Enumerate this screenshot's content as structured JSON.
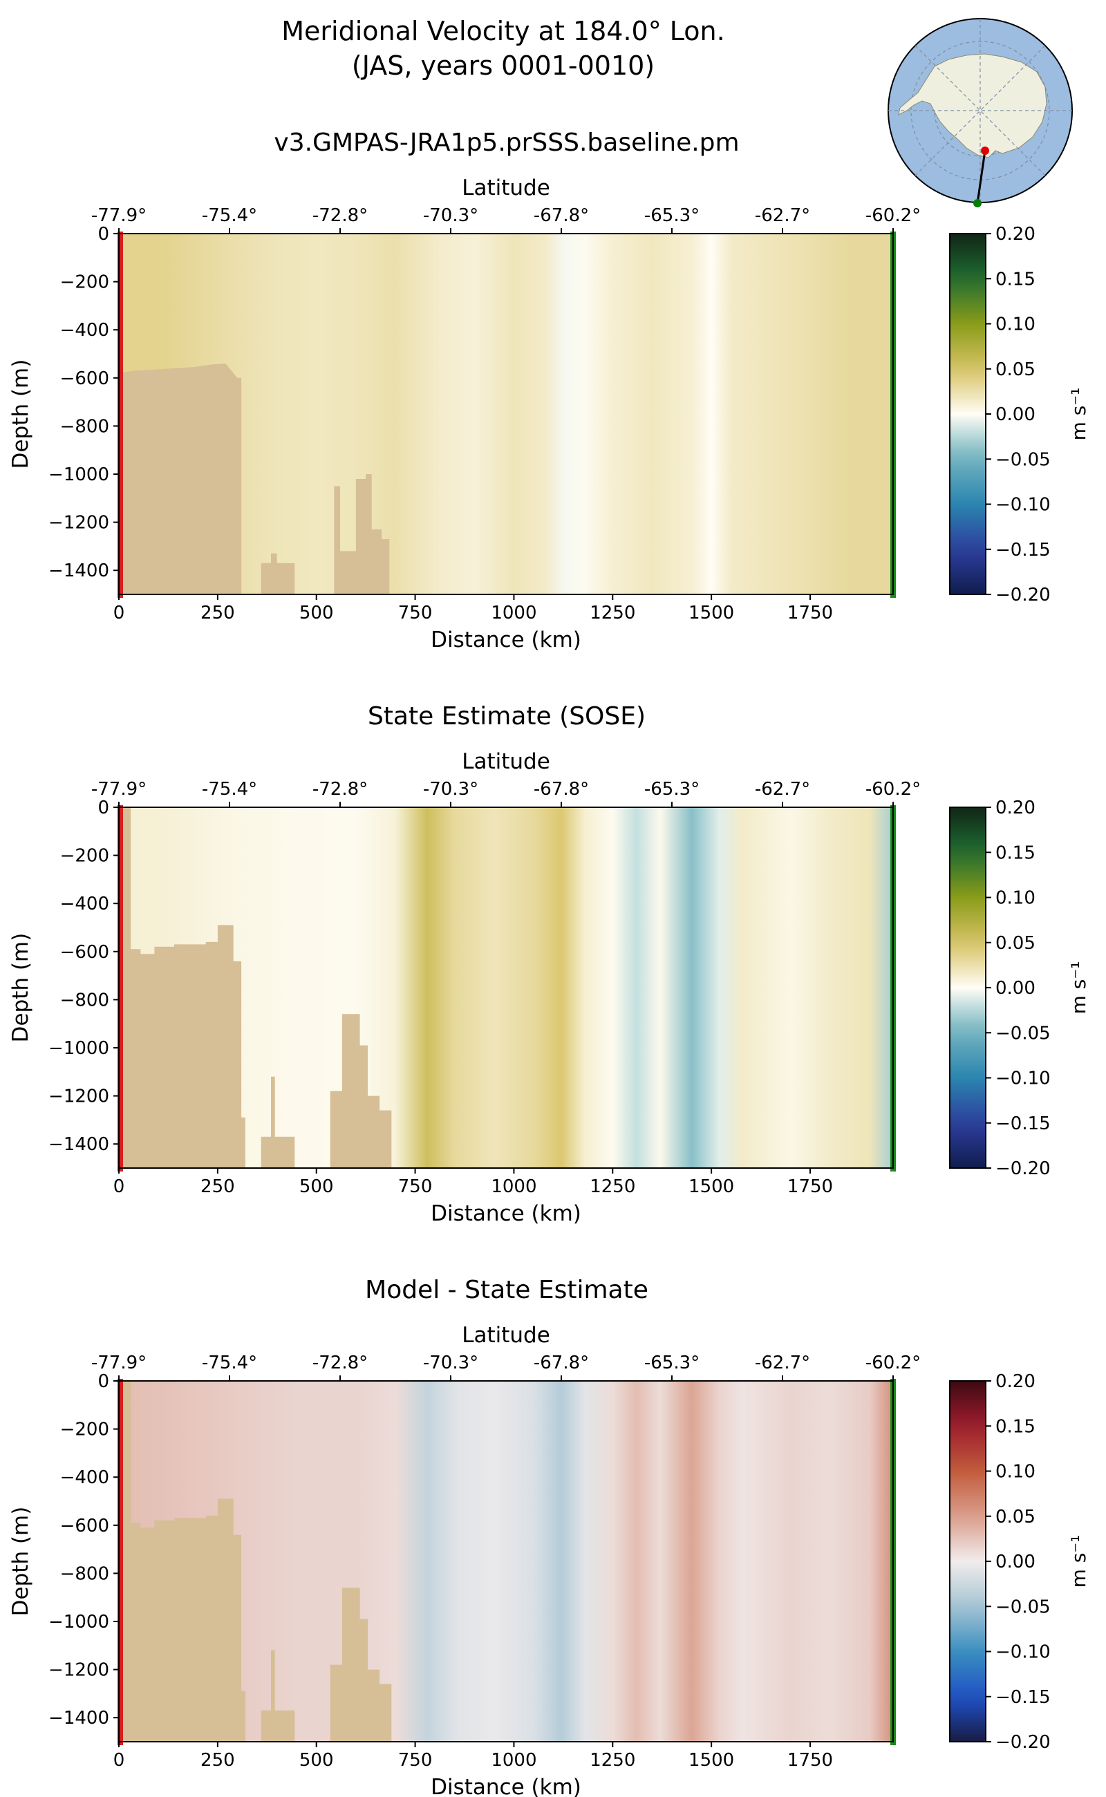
{
  "figure": {
    "title_line1": "Meridional Velocity at 184.0° Lon.",
    "title_line2": "(JAS, years 0001-0010)"
  },
  "inset_map": {
    "description_icon": "antarctica-polar-map-icon",
    "colors": {
      "ocean": "#9cbce0",
      "land": "#efefe0",
      "grid": "#7f8fa0",
      "start": "#e00000",
      "end": "#008000"
    }
  },
  "chart_data": [
    {
      "type": "heatmap",
      "title": "v3.GMPAS-JRA1p5.prSSS.baseline.pm",
      "xlabel": "Distance (km)",
      "ylabel": "Depth (m)",
      "top_axis_label": "Latitude",
      "xlim": [
        0,
        1960
      ],
      "ylim": [
        -1500,
        0
      ],
      "x_ticks": [
        0,
        250,
        500,
        750,
        1000,
        1250,
        1500,
        1750
      ],
      "y_ticks": [
        0,
        -200,
        -400,
        -600,
        -800,
        -1000,
        -1200,
        -1400
      ],
      "lat_ticks": [
        "-77.9°",
        "-75.4°",
        "-72.8°",
        "-70.3°",
        "-67.8°",
        "-65.3°",
        "-62.7°",
        "-60.2°"
      ],
      "colorbar": {
        "label": "m s⁻¹",
        "min": -0.2,
        "max": 0.2,
        "ticks": [
          "0.20",
          "0.15",
          "0.10",
          "0.05",
          "0.00",
          "−0.05",
          "−0.10",
          "−0.15",
          "−0.20"
        ],
        "cmap": "delta"
      },
      "columns": [
        {
          "x": 0,
          "v": 0.035
        },
        {
          "x": 100,
          "v": 0.035
        },
        {
          "x": 200,
          "v": 0.03
        },
        {
          "x": 300,
          "v": 0.025
        },
        {
          "x": 400,
          "v": 0.02
        },
        {
          "x": 500,
          "v": 0.018
        },
        {
          "x": 600,
          "v": 0.02
        },
        {
          "x": 700,
          "v": 0.025
        },
        {
          "x": 800,
          "v": 0.015
        },
        {
          "x": 900,
          "v": 0.01
        },
        {
          "x": 1000,
          "v": 0.02
        },
        {
          "x": 1080,
          "v": 0.015
        },
        {
          "x": 1130,
          "v": -0.003
        },
        {
          "x": 1180,
          "v": 0.002
        },
        {
          "x": 1250,
          "v": 0.012
        },
        {
          "x": 1350,
          "v": 0.018
        },
        {
          "x": 1450,
          "v": 0.012
        },
        {
          "x": 1500,
          "v": 0.0
        },
        {
          "x": 1550,
          "v": 0.015
        },
        {
          "x": 1700,
          "v": 0.022
        },
        {
          "x": 1850,
          "v": 0.03
        },
        {
          "x": 1960,
          "v": 0.03
        }
      ],
      "bathymetry": [
        [
          0,
          -580
        ],
        [
          40,
          -570
        ],
        [
          90,
          -565
        ],
        [
          140,
          -560
        ],
        [
          190,
          -555
        ],
        [
          230,
          -545
        ],
        [
          270,
          -540
        ],
        [
          300,
          -600
        ],
        [
          310,
          -600
        ],
        [
          310,
          -1500
        ],
        [
          360,
          -1500
        ],
        [
          360,
          -1370
        ],
        [
          385,
          -1370
        ],
        [
          385,
          -1330
        ],
        [
          400,
          -1330
        ],
        [
          400,
          -1370
        ],
        [
          445,
          -1370
        ],
        [
          445,
          -1500
        ],
        [
          545,
          -1500
        ],
        [
          545,
          -1050
        ],
        [
          560,
          -1050
        ],
        [
          560,
          -1320
        ],
        [
          600,
          -1320
        ],
        [
          600,
          -1020
        ],
        [
          625,
          -1020
        ],
        [
          625,
          -1000
        ],
        [
          640,
          -1000
        ],
        [
          640,
          -1230
        ],
        [
          665,
          -1230
        ],
        [
          665,
          -1270
        ],
        [
          685,
          -1270
        ],
        [
          685,
          -1500
        ]
      ]
    },
    {
      "type": "heatmap",
      "title": "State Estimate (SOSE)",
      "xlabel": "Distance (km)",
      "ylabel": "Depth (m)",
      "top_axis_label": "Latitude",
      "xlim": [
        0,
        1960
      ],
      "ylim": [
        -1500,
        0
      ],
      "x_ticks": [
        0,
        250,
        500,
        750,
        1000,
        1250,
        1500,
        1750
      ],
      "y_ticks": [
        0,
        -200,
        -400,
        -600,
        -800,
        -1000,
        -1200,
        -1400
      ],
      "lat_ticks": [
        "-77.9°",
        "-75.4°",
        "-72.8°",
        "-70.3°",
        "-67.8°",
        "-65.3°",
        "-62.7°",
        "-60.2°"
      ],
      "colorbar": {
        "label": "m s⁻¹",
        "min": -0.2,
        "max": 0.2,
        "ticks": [
          "0.20",
          "0.15",
          "0.10",
          "0.05",
          "0.00",
          "−0.05",
          "−0.10",
          "−0.15",
          "−0.20"
        ],
        "cmap": "delta"
      },
      "columns": [
        {
          "x": 0,
          "v": 0.012
        },
        {
          "x": 150,
          "v": 0.01
        },
        {
          "x": 300,
          "v": 0.005
        },
        {
          "x": 450,
          "v": 0.003
        },
        {
          "x": 600,
          "v": 0.002
        },
        {
          "x": 700,
          "v": 0.01
        },
        {
          "x": 780,
          "v": 0.055
        },
        {
          "x": 850,
          "v": 0.03
        },
        {
          "x": 950,
          "v": 0.02
        },
        {
          "x": 1050,
          "v": 0.03
        },
        {
          "x": 1120,
          "v": 0.045
        },
        {
          "x": 1180,
          "v": 0.012
        },
        {
          "x": 1250,
          "v": 0.002
        },
        {
          "x": 1310,
          "v": -0.02
        },
        {
          "x": 1370,
          "v": 0.003
        },
        {
          "x": 1450,
          "v": -0.04
        },
        {
          "x": 1520,
          "v": -0.01
        },
        {
          "x": 1580,
          "v": 0.015
        },
        {
          "x": 1700,
          "v": 0.005
        },
        {
          "x": 1800,
          "v": 0.015
        },
        {
          "x": 1900,
          "v": 0.02
        },
        {
          "x": 1960,
          "v": -0.03
        }
      ],
      "bathymetry": [
        [
          0,
          -1500
        ],
        [
          0,
          0
        ],
        [
          30,
          0
        ],
        [
          30,
          -590
        ],
        [
          55,
          -590
        ],
        [
          55,
          -610
        ],
        [
          90,
          -610
        ],
        [
          90,
          -580
        ],
        [
          140,
          -580
        ],
        [
          140,
          -570
        ],
        [
          220,
          -570
        ],
        [
          220,
          -560
        ],
        [
          250,
          -560
        ],
        [
          250,
          -490
        ],
        [
          290,
          -490
        ],
        [
          290,
          -640
        ],
        [
          310,
          -640
        ],
        [
          310,
          -1290
        ],
        [
          320,
          -1290
        ],
        [
          320,
          -1500
        ],
        [
          360,
          -1500
        ],
        [
          360,
          -1370
        ],
        [
          385,
          -1370
        ],
        [
          385,
          -1120
        ],
        [
          395,
          -1120
        ],
        [
          395,
          -1370
        ],
        [
          445,
          -1370
        ],
        [
          445,
          -1500
        ],
        [
          535,
          -1500
        ],
        [
          535,
          -1180
        ],
        [
          565,
          -1180
        ],
        [
          565,
          -860
        ],
        [
          610,
          -860
        ],
        [
          610,
          -990
        ],
        [
          630,
          -990
        ],
        [
          630,
          -1200
        ],
        [
          660,
          -1200
        ],
        [
          660,
          -1260
        ],
        [
          690,
          -1260
        ],
        [
          690,
          -1500
        ]
      ]
    },
    {
      "type": "heatmap",
      "title": "Model - State Estimate",
      "xlabel": "Distance (km)",
      "ylabel": "Depth (m)",
      "top_axis_label": "Latitude",
      "xlim": [
        0,
        1960
      ],
      "ylim": [
        -1500,
        0
      ],
      "x_ticks": [
        0,
        250,
        500,
        750,
        1000,
        1250,
        1500,
        1750
      ],
      "y_ticks": [
        0,
        -200,
        -400,
        -600,
        -800,
        -1000,
        -1200,
        -1400
      ],
      "lat_ticks": [
        "-77.9°",
        "-75.4°",
        "-72.8°",
        "-70.3°",
        "-67.8°",
        "-65.3°",
        "-62.7°",
        "-60.2°"
      ],
      "colorbar": {
        "label": "m s⁻¹",
        "min": -0.2,
        "max": 0.2,
        "ticks": [
          "0.20",
          "0.15",
          "0.10",
          "0.05",
          "0.00",
          "−0.05",
          "−0.10",
          "−0.15",
          "−0.20"
        ],
        "cmap": "balance"
      },
      "columns": [
        {
          "x": 0,
          "v": 0.03
        },
        {
          "x": 150,
          "v": 0.025
        },
        {
          "x": 300,
          "v": 0.02
        },
        {
          "x": 450,
          "v": 0.015
        },
        {
          "x": 600,
          "v": 0.015
        },
        {
          "x": 700,
          "v": 0.01
        },
        {
          "x": 780,
          "v": -0.03
        },
        {
          "x": 860,
          "v": -0.01
        },
        {
          "x": 950,
          "v": -0.005
        },
        {
          "x": 1050,
          "v": -0.015
        },
        {
          "x": 1120,
          "v": -0.04
        },
        {
          "x": 1180,
          "v": -0.01
        },
        {
          "x": 1250,
          "v": 0.01
        },
        {
          "x": 1310,
          "v": 0.03
        },
        {
          "x": 1370,
          "v": 0.01
        },
        {
          "x": 1450,
          "v": 0.045
        },
        {
          "x": 1520,
          "v": 0.015
        },
        {
          "x": 1580,
          "v": 0.005
        },
        {
          "x": 1700,
          "v": 0.015
        },
        {
          "x": 1800,
          "v": 0.01
        },
        {
          "x": 1900,
          "v": 0.02
        },
        {
          "x": 1960,
          "v": 0.06
        }
      ],
      "bathymetry": [
        [
          0,
          -1500
        ],
        [
          0,
          0
        ],
        [
          30,
          0
        ],
        [
          30,
          -590
        ],
        [
          55,
          -590
        ],
        [
          55,
          -610
        ],
        [
          90,
          -610
        ],
        [
          90,
          -580
        ],
        [
          140,
          -580
        ],
        [
          140,
          -570
        ],
        [
          220,
          -570
        ],
        [
          220,
          -560
        ],
        [
          250,
          -560
        ],
        [
          250,
          -490
        ],
        [
          290,
          -490
        ],
        [
          290,
          -640
        ],
        [
          310,
          -640
        ],
        [
          310,
          -1290
        ],
        [
          320,
          -1290
        ],
        [
          320,
          -1500
        ],
        [
          360,
          -1500
        ],
        [
          360,
          -1370
        ],
        [
          385,
          -1370
        ],
        [
          385,
          -1120
        ],
        [
          395,
          -1120
        ],
        [
          395,
          -1370
        ],
        [
          445,
          -1370
        ],
        [
          445,
          -1500
        ],
        [
          535,
          -1500
        ],
        [
          535,
          -1180
        ],
        [
          565,
          -1180
        ],
        [
          565,
          -860
        ],
        [
          610,
          -860
        ],
        [
          610,
          -990
        ],
        [
          630,
          -990
        ],
        [
          630,
          -1200
        ],
        [
          660,
          -1200
        ],
        [
          660,
          -1260
        ],
        [
          690,
          -1260
        ],
        [
          690,
          -1500
        ]
      ]
    }
  ]
}
